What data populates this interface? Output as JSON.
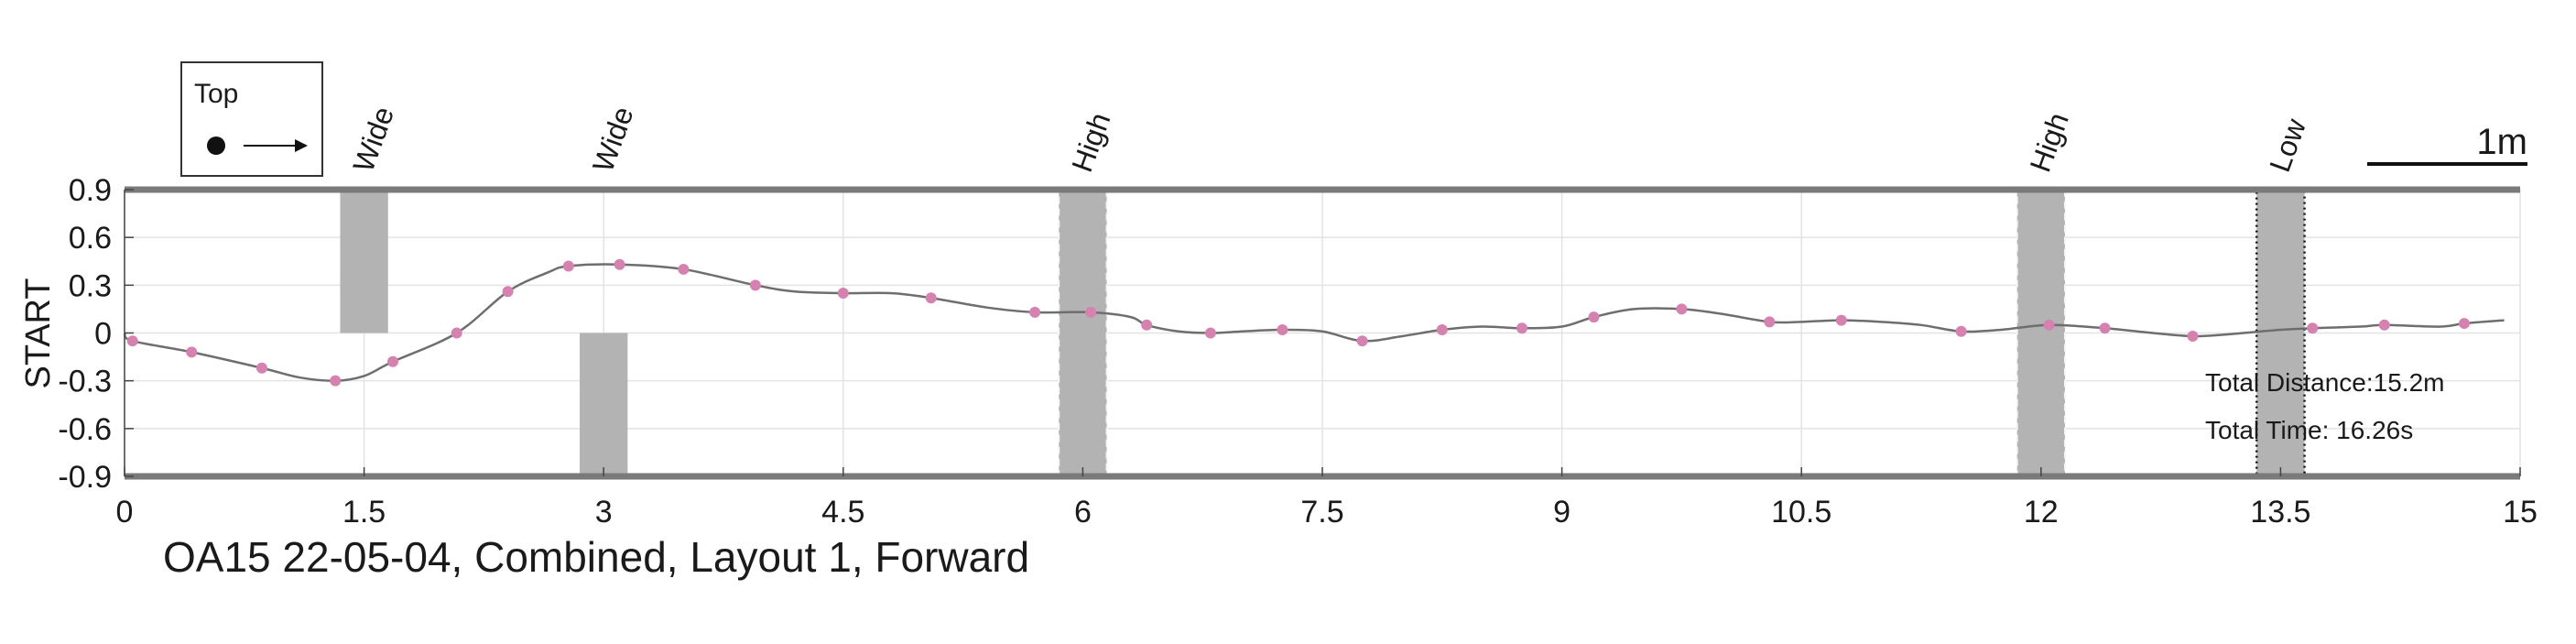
{
  "chart_data": {
    "type": "line",
    "xlabel": "",
    "ylabel": "START",
    "caption": "OA15 22-05-04, Combined, Layout 1, Forward",
    "xlim": [
      0,
      15
    ],
    "ylim": [
      -0.9,
      0.9
    ],
    "x_ticks": [
      0,
      1.5,
      3,
      4.5,
      6,
      7.5,
      9,
      10.5,
      12,
      13.5,
      15
    ],
    "x_tick_labels": [
      "0",
      "1.5",
      "3",
      "4.5",
      "6",
      "7.5",
      "9",
      "10.5",
      "12",
      "13.5",
      "15"
    ],
    "y_ticks": [
      0.9,
      0.6,
      0.3,
      0,
      -0.3,
      -0.6,
      -0.9
    ],
    "y_tick_labels": [
      "0.9",
      "0.6",
      "0.3",
      "0",
      "-0.3",
      "-0.6",
      "-0.9"
    ],
    "grid": true,
    "legend": {
      "placement": "top-left",
      "title": "Top"
    },
    "scale_bar": {
      "label": "1m",
      "length": 1
    },
    "stats": {
      "total_distance": "Total Distance:15.2m",
      "total_time": "Total Time: 16.26s"
    },
    "colors": {
      "path": "#6e6e6e",
      "markers": "#d682b0",
      "obstacle": "#b3b3b3",
      "frame": "#7a7a7a"
    },
    "obstacles": [
      {
        "label": "Wide",
        "x_start": 1.35,
        "x_end": 1.65,
        "y_low": 0,
        "y_high": 0.9,
        "border": "none"
      },
      {
        "label": "Wide",
        "x_start": 2.85,
        "x_end": 3.15,
        "y_low": -0.9,
        "y_high": 0,
        "border": "none"
      },
      {
        "label": "High",
        "x_start": 5.85,
        "x_end": 6.15,
        "y_low": -0.9,
        "y_high": 0.9,
        "border": "dashed"
      },
      {
        "label": "High",
        "x_start": 11.85,
        "x_end": 12.15,
        "y_low": -0.9,
        "y_high": 0.9,
        "border": "dashed"
      },
      {
        "label": "Low",
        "x_start": 13.35,
        "x_end": 13.65,
        "y_low": -0.9,
        "y_high": 0.9,
        "border": "dotted"
      }
    ],
    "series": [
      {
        "values": [
          [
            0,
            0
          ],
          [
            0.05,
            -0.05
          ],
          [
            0.42,
            -0.12
          ],
          [
            0.86,
            -0.22
          ],
          [
            1.1,
            -0.28
          ],
          [
            1.32,
            -0.3
          ],
          [
            1.5,
            -0.27
          ],
          [
            1.68,
            -0.18
          ],
          [
            2.08,
            0.0
          ],
          [
            2.4,
            0.26
          ],
          [
            2.65,
            0.38
          ],
          [
            2.78,
            0.42
          ],
          [
            3.1,
            0.43
          ],
          [
            3.5,
            0.4
          ],
          [
            3.95,
            0.3
          ],
          [
            4.2,
            0.26
          ],
          [
            4.5,
            0.25
          ],
          [
            4.8,
            0.25
          ],
          [
            5.05,
            0.22
          ],
          [
            5.4,
            0.16
          ],
          [
            5.7,
            0.13
          ],
          [
            6.05,
            0.13
          ],
          [
            6.3,
            0.1
          ],
          [
            6.4,
            0.05
          ],
          [
            6.6,
            0.01
          ],
          [
            6.8,
            0.0
          ],
          [
            7.0,
            0.01
          ],
          [
            7.25,
            0.02
          ],
          [
            7.5,
            0.01
          ],
          [
            7.75,
            -0.05
          ],
          [
            8.0,
            -0.02
          ],
          [
            8.25,
            0.02
          ],
          [
            8.5,
            0.04
          ],
          [
            8.75,
            0.03
          ],
          [
            9.0,
            0.04
          ],
          [
            9.2,
            0.1
          ],
          [
            9.45,
            0.15
          ],
          [
            9.75,
            0.15
          ],
          [
            10.0,
            0.12
          ],
          [
            10.3,
            0.07
          ],
          [
            10.5,
            0.07
          ],
          [
            10.75,
            0.08
          ],
          [
            11.0,
            0.07
          ],
          [
            11.25,
            0.05
          ],
          [
            11.5,
            0.01
          ],
          [
            11.75,
            0.02
          ],
          [
            12.05,
            0.05
          ],
          [
            12.4,
            0.03
          ],
          [
            12.7,
            0.0
          ],
          [
            12.95,
            -0.02
          ],
          [
            13.15,
            -0.01
          ],
          [
            13.5,
            0.02
          ],
          [
            13.7,
            0.03
          ],
          [
            14.0,
            0.04
          ],
          [
            14.15,
            0.05
          ],
          [
            14.5,
            0.04
          ],
          [
            14.65,
            0.06
          ],
          [
            14.9,
            0.08
          ]
        ],
        "markers": [
          [
            0.05,
            -0.05
          ],
          [
            0.42,
            -0.12
          ],
          [
            0.86,
            -0.22
          ],
          [
            1.32,
            -0.3
          ],
          [
            1.68,
            -0.18
          ],
          [
            2.08,
            0.0
          ],
          [
            2.4,
            0.26
          ],
          [
            2.78,
            0.42
          ],
          [
            3.1,
            0.43
          ],
          [
            3.5,
            0.4
          ],
          [
            3.95,
            0.3
          ],
          [
            4.5,
            0.25
          ],
          [
            5.05,
            0.22
          ],
          [
            5.7,
            0.13
          ],
          [
            6.05,
            0.13
          ],
          [
            6.4,
            0.05
          ],
          [
            6.8,
            0.0
          ],
          [
            7.25,
            0.02
          ],
          [
            7.75,
            -0.05
          ],
          [
            8.25,
            0.02
          ],
          [
            8.75,
            0.03
          ],
          [
            9.2,
            0.1
          ],
          [
            9.75,
            0.15
          ],
          [
            10.3,
            0.07
          ],
          [
            10.75,
            0.08
          ],
          [
            11.5,
            0.01
          ],
          [
            12.05,
            0.05
          ],
          [
            12.4,
            0.03
          ],
          [
            12.95,
            -0.02
          ],
          [
            13.7,
            0.03
          ],
          [
            14.15,
            0.05
          ],
          [
            14.65,
            0.06
          ]
        ]
      }
    ]
  }
}
